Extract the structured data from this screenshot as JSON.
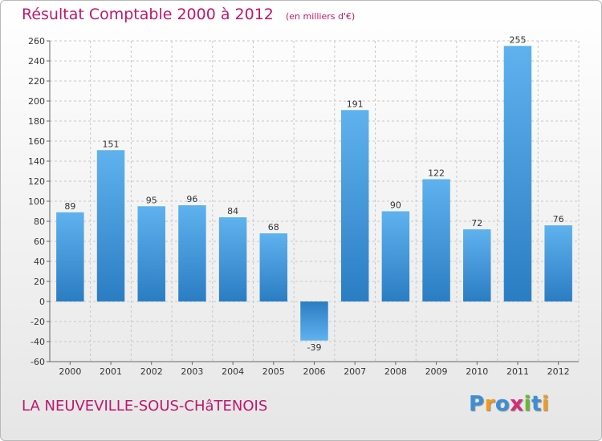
{
  "chart_data": {
    "type": "bar",
    "title": "Résultat Comptable 2000 à 2012",
    "unit_note": "(en milliers d'€)",
    "categories": [
      "2000",
      "2001",
      "2002",
      "2003",
      "2004",
      "2005",
      "2006",
      "2007",
      "2008",
      "2009",
      "2010",
      "2011",
      "2012"
    ],
    "values": [
      89,
      151,
      95,
      96,
      84,
      68,
      -39,
      191,
      90,
      122,
      72,
      255,
      76
    ],
    "data_labels": [
      "89",
      "151",
      "95",
      "96",
      "84",
      "68",
      "-39",
      "191",
      "90",
      "122",
      "72",
      "255",
      "76"
    ],
    "ylim": [
      -60,
      260
    ],
    "yticks": [
      -60,
      -40,
      -20,
      0,
      20,
      40,
      60,
      80,
      100,
      120,
      140,
      160,
      180,
      200,
      220,
      240,
      260
    ],
    "ytick_labels": [
      "-60",
      "-40",
      "-20",
      "0",
      "20",
      "40",
      "60",
      "80",
      "100",
      "120",
      "140",
      "160",
      "180",
      "200",
      "220",
      "240",
      "260"
    ],
    "grid": true,
    "bar_color": "#3d96dc"
  },
  "footer": {
    "place": "LA NEUVEVILLE-SOUS-CHâTENOIS",
    "logo_letters": [
      "P",
      "r",
      "o",
      "x",
      "i",
      "t",
      "i"
    ],
    "logo_colors": [
      "#3a8fd6",
      "#f39a1a",
      "#3a8fd6",
      "#d62a7a",
      "#6bb82f",
      "#3a8fd6",
      "#f39a1a"
    ]
  }
}
